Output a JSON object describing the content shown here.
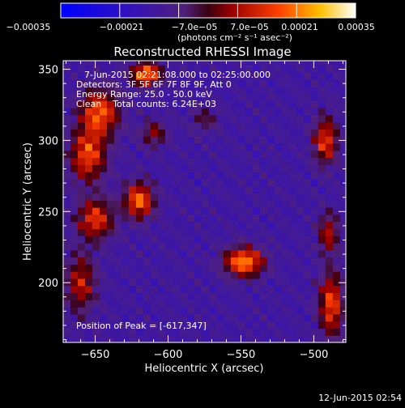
{
  "chart_data": {
    "type": "heatmap",
    "title": "Reconstructed RHESSI Image",
    "xlabel": "Heliocentric X (arcsec)",
    "ylabel": "Heliocentric Y (arcsec)",
    "xlim": [
      -672,
      -478
    ],
    "ylim": [
      158,
      356
    ],
    "x_ticks": [
      -650,
      -600,
      -550,
      -500
    ],
    "y_ticks": [
      200,
      250,
      300,
      350
    ],
    "x_tick_labels": [
      "−650",
      "−600",
      "−550",
      "−500"
    ],
    "y_tick_labels": [
      "200",
      "250",
      "300",
      "350"
    ],
    "colorbar": {
      "range": [
        -0.00035,
        0.00035
      ],
      "tick_values": [
        -0.00035,
        -0.00021,
        -7e-05,
        7e-05,
        0.00021,
        0.00035
      ],
      "tick_labels": [
        "−0.00035",
        "−0.00021",
        "−7.0e−05",
        "7.0e−05",
        "0.00021",
        "0.00035"
      ],
      "unit_label": "(photons cm⁻² s⁻¹ asec⁻²)"
    },
    "annotations": [
      "7-Jun-2015 02:21:08.000 to 02:25:00.000",
      "Detectors: 3F 5F 6F 7F 8F 9F, Att 0",
      "Energy Range: 25.0 - 50.0 keV",
      "Clean    Total counts: 6.24E+03"
    ],
    "peak_label": "Position of Peak = [-617,347]",
    "peak_position": [
      -617,
      347
    ],
    "sources": [
      {
        "x": -647,
        "y": 320,
        "w": 13,
        "h": 16,
        "amp": 0.85
      },
      {
        "x": -655,
        "y": 290,
        "w": 12,
        "h": 18,
        "amp": 0.8
      },
      {
        "x": -650,
        "y": 245,
        "w": 12,
        "h": 14,
        "amp": 0.75
      },
      {
        "x": -620,
        "y": 258,
        "w": 10,
        "h": 12,
        "amp": 0.9
      },
      {
        "x": -660,
        "y": 200,
        "w": 10,
        "h": 20,
        "amp": 0.6
      },
      {
        "x": -615,
        "y": 347,
        "w": 10,
        "h": 8,
        "amp": 1.0
      },
      {
        "x": -610,
        "y": 305,
        "w": 9,
        "h": 9,
        "amp": 0.45
      },
      {
        "x": -548,
        "y": 215,
        "w": 13,
        "h": 10,
        "amp": 1.0
      },
      {
        "x": -492,
        "y": 300,
        "w": 8,
        "h": 16,
        "amp": 0.75
      },
      {
        "x": -490,
        "y": 235,
        "w": 7,
        "h": 14,
        "amp": 0.55
      },
      {
        "x": -488,
        "y": 185,
        "w": 8,
        "h": 22,
        "amp": 0.8
      },
      {
        "x": -575,
        "y": 315,
        "w": 9,
        "h": 9,
        "amp": 0.3
      }
    ]
  },
  "footer": {
    "timestamp": "12-Jun-2015 02:54"
  }
}
